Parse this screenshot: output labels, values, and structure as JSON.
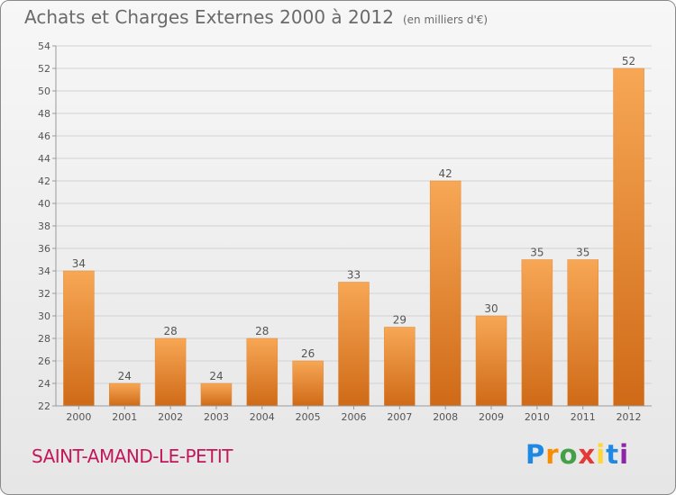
{
  "header": {
    "title": "Achats et Charges Externes 2000 à 2012",
    "unit": "(en milliers d'€)"
  },
  "footer": {
    "commune": "SAINT-AMAND-LE-PETIT",
    "brand": [
      "P",
      "r",
      "o",
      "x",
      "i",
      "t",
      "i"
    ]
  },
  "colors": {
    "bar_top": "#f7a755",
    "bar_bottom": "#cf6a17",
    "grid": "#d2d2d2",
    "axis": "#9a9a9a",
    "text": "#555555",
    "commune": "#c2185b"
  },
  "chart_data": {
    "type": "bar",
    "title": "Achats et Charges Externes 2000 à 2012",
    "subtitle": "(en milliers d'€)",
    "xlabel": "",
    "ylabel": "",
    "categories": [
      "2000",
      "2001",
      "2002",
      "2003",
      "2004",
      "2005",
      "2006",
      "2007",
      "2008",
      "2009",
      "2010",
      "2011",
      "2012"
    ],
    "values": [
      34,
      24,
      28,
      24,
      28,
      26,
      33,
      29,
      42,
      30,
      35,
      35,
      52
    ],
    "ylim": [
      22,
      54
    ],
    "yticks": [
      22,
      24,
      26,
      28,
      30,
      32,
      34,
      36,
      38,
      40,
      42,
      44,
      46,
      48,
      50,
      52,
      54
    ],
    "grid": true,
    "data_labels": true
  }
}
